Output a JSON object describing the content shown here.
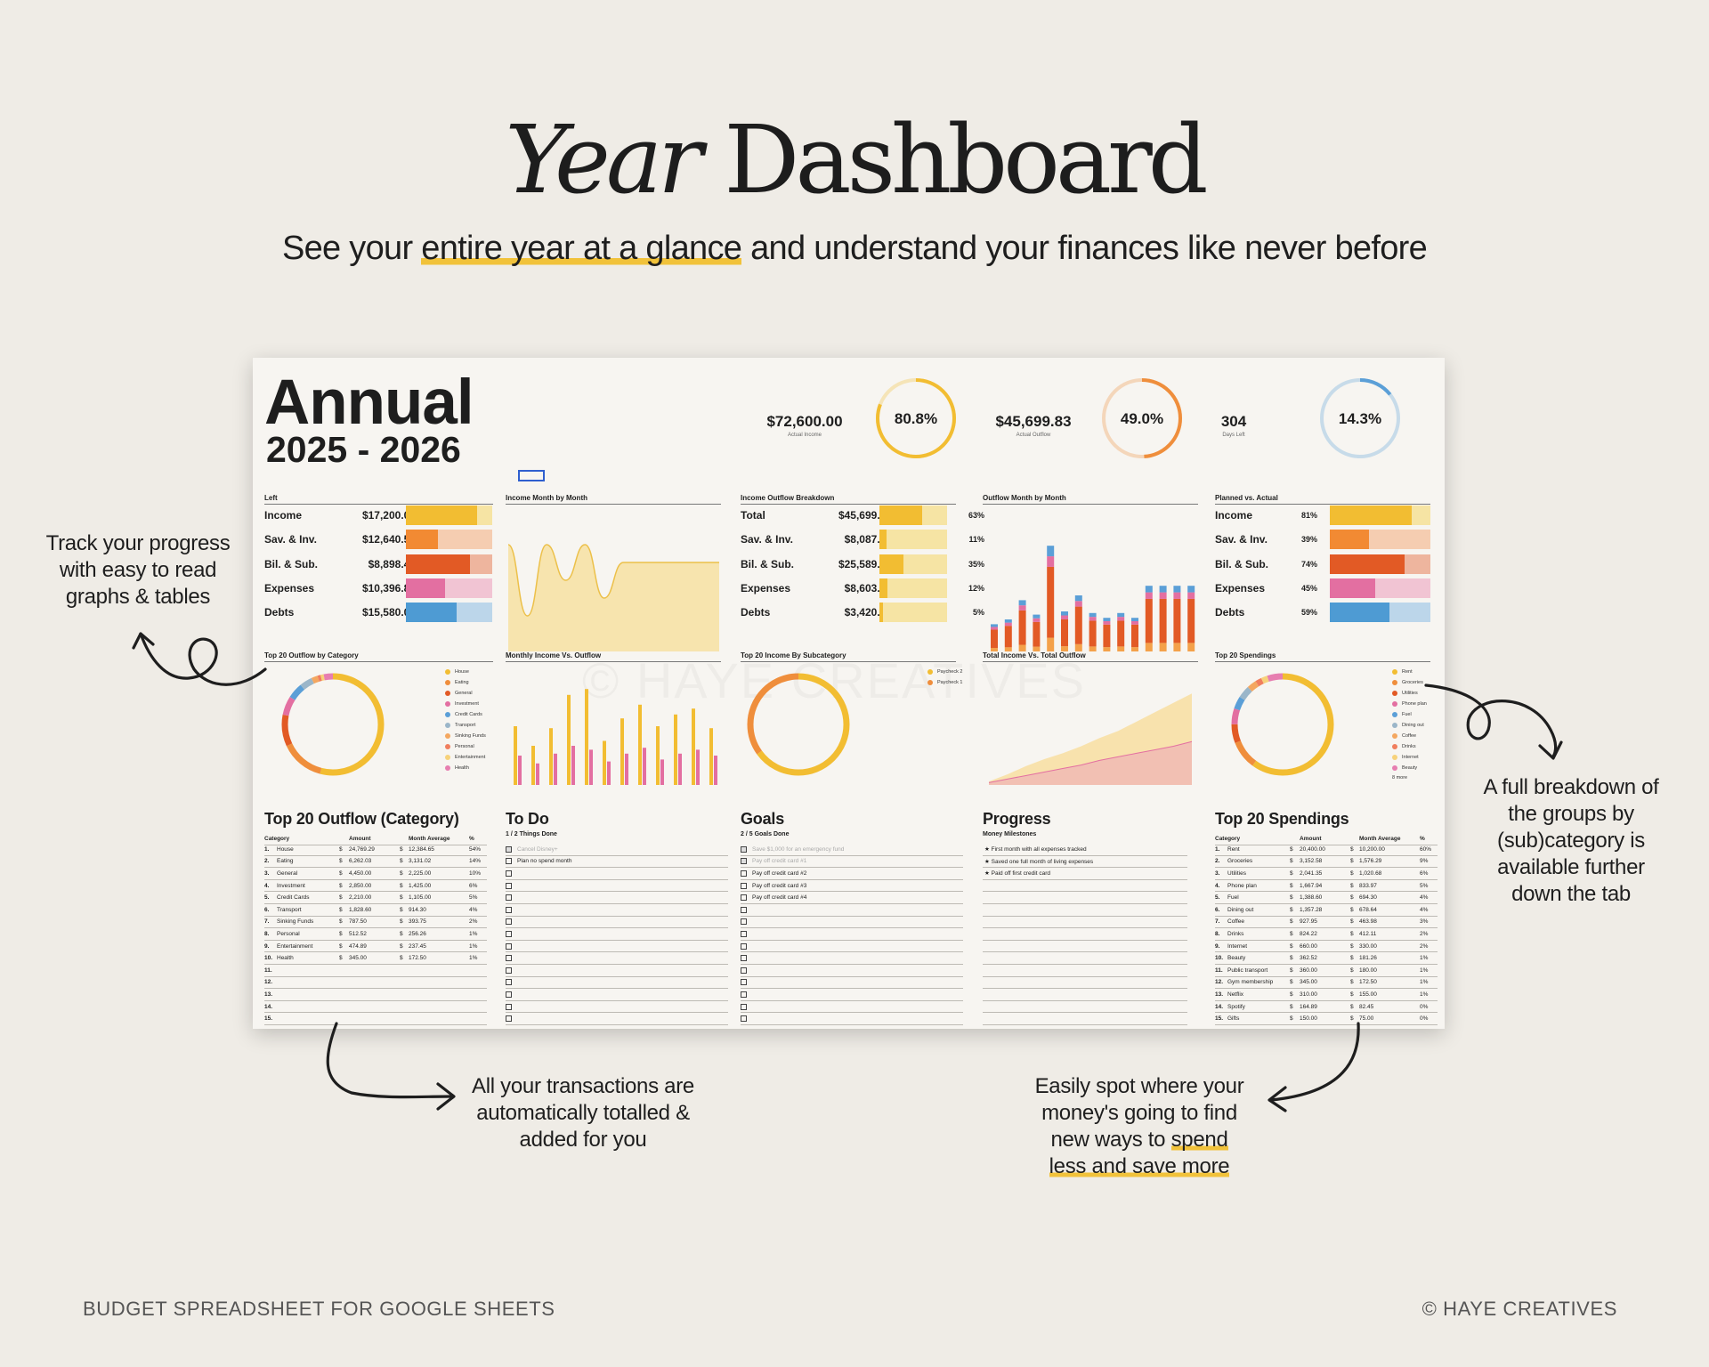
{
  "hero": {
    "title_italic": "Year",
    "title_rest": "Dashboard",
    "subtitle_pre": "See your ",
    "subtitle_highlight": "entire year at a glance",
    "subtitle_post": " and understand your finances like never before"
  },
  "sheet": {
    "title": "Annual",
    "years": "2025 - 2026",
    "kpis": [
      {
        "value": "$72,600.00",
        "label": "Actual Income",
        "ring": "80.8%",
        "fraction": 0.808,
        "color": "#f2bd32"
      },
      {
        "value": "$45,699.83",
        "label": "Actual Outflow",
        "ring": "49.0%",
        "fraction": 0.49,
        "color": "#ef8e3c"
      },
      {
        "value": "304",
        "label": "Days Left",
        "ring": "14.3%",
        "fraction": 0.143,
        "color": "#5b9fd7"
      }
    ],
    "watermark": "© HAYE CREATIVES",
    "left": {
      "title": "Left",
      "rows": [
        {
          "label": "Income",
          "amount": "$17,200.00",
          "fill": 0.82,
          "color": "#f2bd32",
          "bg": "#f6e4a4"
        },
        {
          "label": "Sav. & Inv.",
          "amount": "$12,640.58",
          "fill": 0.37,
          "color": "#f28a33",
          "bg": "#f5cdb1"
        },
        {
          "label": "Bil. & Sub.",
          "amount": "$8,898.43",
          "fill": 0.74,
          "color": "#e25a25",
          "bg": "#eeb59e"
        },
        {
          "label": "Expenses",
          "amount": "$10,396.85",
          "fill": 0.45,
          "color": "#e36fa1",
          "bg": "#f1c4d3"
        },
        {
          "label": "Debts",
          "amount": "$15,580.00",
          "fill": 0.59,
          "color": "#4e9bd3",
          "bg": "#bcd6ea"
        }
      ]
    },
    "income_month": {
      "title": "Income Month by Month"
    },
    "outflow_breakdown": {
      "title": "Income Outflow Breakdown",
      "rows": [
        {
          "label": "Total",
          "amount": "$45,699.83",
          "pct": "63%",
          "fill": 0.63,
          "color": "#f2bd32",
          "bg": "#f6e4a4"
        },
        {
          "label": "Sav. & Inv.",
          "amount": "$8,087.50",
          "pct": "11%",
          "fill": 0.11,
          "color": "#f2bd32",
          "bg": "#f6e4a4"
        },
        {
          "label": "Bil. & Sub.",
          "amount": "$25,589.18",
          "pct": "35%",
          "fill": 0.35,
          "color": "#f2bd32",
          "bg": "#f6e4a4"
        },
        {
          "label": "Expenses",
          "amount": "$8,603.15",
          "pct": "12%",
          "fill": 0.12,
          "color": "#f2bd32",
          "bg": "#f6e4a4"
        },
        {
          "label": "Debts",
          "amount": "$3,420.00",
          "pct": "5%",
          "fill": 0.05,
          "color": "#f2bd32",
          "bg": "#f6e4a4"
        }
      ]
    },
    "outflow_month": {
      "title": "Outflow Month by Month"
    },
    "planned_actual": {
      "title": "Planned vs. Actual",
      "rows": [
        {
          "label": "Income",
          "pct": "81%",
          "fill": 0.81,
          "color": "#f2bd32",
          "bg": "#f6e4a4"
        },
        {
          "label": "Sav. & Inv.",
          "pct": "39%",
          "fill": 0.39,
          "color": "#f28a33",
          "bg": "#f5cdb1"
        },
        {
          "label": "Bil. & Sub.",
          "pct": "74%",
          "fill": 0.74,
          "color": "#e25a25",
          "bg": "#eeb59e"
        },
        {
          "label": "Expenses",
          "pct": "45%",
          "fill": 0.45,
          "color": "#e36fa1",
          "bg": "#f1c4d3"
        },
        {
          "label": "Debts",
          "pct": "59%",
          "fill": 0.59,
          "color": "#4e9bd3",
          "bg": "#bcd6ea"
        }
      ]
    },
    "donut1": {
      "title": "Top 20 Outflow by Category",
      "legend": [
        "House",
        "Eating",
        "General",
        "Investment",
        "Credit Cards",
        "Transport",
        "Sinking Funds",
        "Personal",
        "Entertainment",
        "Health"
      ],
      "colors": [
        "#f2bd32",
        "#ef8e3c",
        "#e25a25",
        "#e36fa1",
        "#5b9fd7",
        "#9bb6c9",
        "#f4a760",
        "#f07e5e",
        "#f7d27a",
        "#e77eb0"
      ]
    },
    "monthly_io": {
      "title": "Monthly Income Vs. Outflow"
    },
    "donut3": {
      "title": "Top 20 Income By Subcategory",
      "legend": [
        "Paycheck 2",
        "Paycheck 1"
      ],
      "colors": [
        "#f2bd32",
        "#ef8e3c"
      ]
    },
    "total_io": {
      "title": "Total Income Vs. Total Outflow"
    },
    "donut5": {
      "title": "Top 20 Spendings",
      "legend": [
        "Rent",
        "Groceries",
        "Utilities",
        "Phone plan",
        "Fuel",
        "Dining out",
        "Coffee",
        "Drinks",
        "Internet",
        "Beauty"
      ],
      "more": "8 more",
      "colors": [
        "#f2bd32",
        "#ef8e3c",
        "#e25a25",
        "#e36fa1",
        "#5b9fd7",
        "#9bb6c9",
        "#f4a760",
        "#f07e5e",
        "#f7d27a",
        "#e77eb0"
      ]
    },
    "outflow_table": {
      "title": "Top 20 Outflow (Category)",
      "headers": [
        "Category",
        "Amount",
        "Month Average",
        "%"
      ],
      "rows": [
        {
          "n": "1.",
          "cat": "House",
          "amt": "24,769.29",
          "avg": "12,384.65",
          "pct": "54%"
        },
        {
          "n": "2.",
          "cat": "Eating",
          "amt": "6,262.03",
          "avg": "3,131.02",
          "pct": "14%"
        },
        {
          "n": "3.",
          "cat": "General",
          "amt": "4,450.00",
          "avg": "2,225.00",
          "pct": "10%"
        },
        {
          "n": "4.",
          "cat": "Investment",
          "amt": "2,850.00",
          "avg": "1,425.00",
          "pct": "6%"
        },
        {
          "n": "5.",
          "cat": "Credit Cards",
          "amt": "2,210.00",
          "avg": "1,105.00",
          "pct": "5%"
        },
        {
          "n": "6.",
          "cat": "Transport",
          "amt": "1,828.60",
          "avg": "914.30",
          "pct": "4%"
        },
        {
          "n": "7.",
          "cat": "Sinking Funds",
          "amt": "787.50",
          "avg": "393.75",
          "pct": "2%"
        },
        {
          "n": "8.",
          "cat": "Personal",
          "amt": "512.52",
          "avg": "256.26",
          "pct": "1%"
        },
        {
          "n": "9.",
          "cat": "Entertainment",
          "amt": "474.89",
          "avg": "237.45",
          "pct": "1%"
        },
        {
          "n": "10.",
          "cat": "Health",
          "amt": "345.00",
          "avg": "172.50",
          "pct": "1%"
        },
        {
          "n": "11.",
          "cat": "",
          "amt": "",
          "avg": "",
          "pct": ""
        },
        {
          "n": "12.",
          "cat": "",
          "amt": "",
          "avg": "",
          "pct": ""
        },
        {
          "n": "13.",
          "cat": "",
          "amt": "",
          "avg": "",
          "pct": ""
        },
        {
          "n": "14.",
          "cat": "",
          "amt": "",
          "avg": "",
          "pct": ""
        },
        {
          "n": "15.",
          "cat": "",
          "amt": "",
          "avg": "",
          "pct": ""
        }
      ]
    },
    "todo": {
      "title": "To Do",
      "sub": "1 / 2 Things Done",
      "items": [
        "Cancel Disney+",
        "Plan no spend month",
        "",
        "",
        "",
        "",
        "",
        "",
        "",
        "",
        "",
        "",
        "",
        "",
        ""
      ],
      "done": [
        true,
        false,
        false,
        false,
        false,
        false,
        false,
        false,
        false,
        false,
        false,
        false,
        false,
        false,
        false
      ]
    },
    "goals": {
      "title": "Goals",
      "sub": "2 / 5 Goals Done",
      "items": [
        "Save $1,000 for an emergency fund",
        "Pay off credit card #1",
        "Pay off credit card #2",
        "Pay off credit card #3",
        "Pay off credit card #4",
        "",
        "",
        "",
        "",
        "",
        "",
        "",
        "",
        "",
        ""
      ],
      "done": [
        true,
        true,
        false,
        false,
        false,
        false,
        false,
        false,
        false,
        false,
        false,
        false,
        false,
        false,
        false
      ]
    },
    "progress": {
      "title": "Progress",
      "sub": "Money Milestones",
      "items": [
        "★ First month with all expenses tracked",
        "★ Saved one full month of living expenses",
        "★ Paid off first credit card"
      ]
    },
    "spend_table": {
      "title": "Top 20 Spendings",
      "headers": [
        "Category",
        "Amount",
        "Month Average",
        "%"
      ],
      "rows": [
        {
          "n": "1.",
          "cat": "Rent",
          "amt": "20,400.00",
          "avg": "10,200.00",
          "pct": "60%"
        },
        {
          "n": "2.",
          "cat": "Groceries",
          "amt": "3,152.58",
          "avg": "1,576.29",
          "pct": "9%"
        },
        {
          "n": "3.",
          "cat": "Utilities",
          "amt": "2,041.35",
          "avg": "1,020.68",
          "pct": "6%"
        },
        {
          "n": "4.",
          "cat": "Phone plan",
          "amt": "1,667.94",
          "avg": "833.97",
          "pct": "5%"
        },
        {
          "n": "5.",
          "cat": "Fuel",
          "amt": "1,388.60",
          "avg": "694.30",
          "pct": "4%"
        },
        {
          "n": "6.",
          "cat": "Dining out",
          "amt": "1,357.28",
          "avg": "678.64",
          "pct": "4%"
        },
        {
          "n": "7.",
          "cat": "Coffee",
          "amt": "927.95",
          "avg": "463.98",
          "pct": "3%"
        },
        {
          "n": "8.",
          "cat": "Drinks",
          "amt": "824.22",
          "avg": "412.11",
          "pct": "2%"
        },
        {
          "n": "9.",
          "cat": "Internet",
          "amt": "660.00",
          "avg": "330.00",
          "pct": "2%"
        },
        {
          "n": "10.",
          "cat": "Beauty",
          "amt": "362.52",
          "avg": "181.26",
          "pct": "1%"
        },
        {
          "n": "11.",
          "cat": "Public transport",
          "amt": "360.00",
          "avg": "180.00",
          "pct": "1%"
        },
        {
          "n": "12.",
          "cat": "Gym membership",
          "amt": "345.00",
          "avg": "172.50",
          "pct": "1%"
        },
        {
          "n": "13.",
          "cat": "Netflix",
          "amt": "310.00",
          "avg": "155.00",
          "pct": "1%"
        },
        {
          "n": "14.",
          "cat": "Spotify",
          "amt": "164.89",
          "avg": "82.45",
          "pct": "0%"
        },
        {
          "n": "15.",
          "cat": "Gifts",
          "amt": "150.00",
          "avg": "75.00",
          "pct": "0%"
        }
      ]
    }
  },
  "chart_data": [
    {
      "type": "area",
      "title": "Income Month by Month",
      "values": [
        6,
        2,
        6,
        4,
        6,
        3,
        5,
        5,
        5,
        5,
        5,
        5
      ]
    },
    {
      "type": "bar",
      "title": "Outflow Month by Month",
      "values": [
        1.7,
        2.0,
        3.2,
        2.3,
        6.6,
        2.5,
        3.5,
        2.4,
        2.1,
        2.4,
        2.1,
        4.1,
        4.1,
        4.1,
        4.1
      ]
    },
    {
      "type": "bar",
      "title": "Monthly Income Vs. Outflow",
      "series": [
        {
          "values": [
            60,
            40,
            58,
            92,
            98,
            45,
            68,
            82,
            60,
            72,
            78,
            58
          ]
        },
        {
          "values": [
            30,
            22,
            32,
            40,
            36,
            24,
            32,
            38,
            26,
            32,
            36,
            30
          ]
        }
      ]
    },
    {
      "type": "area",
      "title": "Total Income Vs. Total Outflow",
      "series": [
        {
          "values": [
            3,
            9,
            16,
            22,
            27,
            33,
            40,
            46,
            54,
            62,
            70,
            78
          ]
        },
        {
          "values": [
            2,
            5,
            8,
            11,
            14,
            17,
            21,
            24,
            27,
            30,
            33,
            37
          ]
        }
      ]
    }
  ],
  "notes": {
    "track": [
      "Track your progress",
      "with easy to read",
      "graphs & tables"
    ],
    "breakdown": [
      "A full breakdown of",
      "the groups by",
      "(sub)category is",
      "available further",
      "down the tab"
    ],
    "auto": [
      "All your transactions are",
      "automatically totalled &",
      "added for you"
    ],
    "spot_lines": [
      "Easily spot where your",
      "money's going to find",
      "new ways to "
    ],
    "spot_hl1": "spend",
    "spot_hl2": "less and save more"
  },
  "footer": {
    "left": "BUDGET SPREADSHEET FOR GOOGLE SHEETS",
    "right": "© HAYE CREATIVES"
  }
}
